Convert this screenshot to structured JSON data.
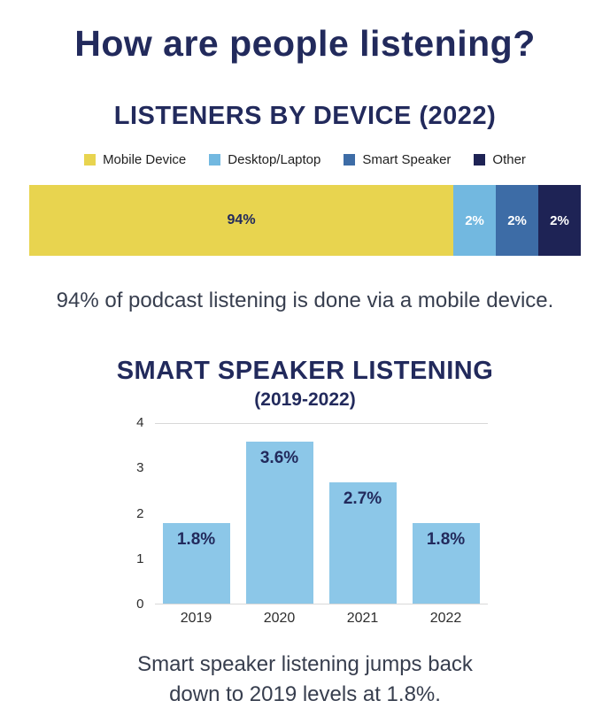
{
  "page": {
    "title": "How are people listening?"
  },
  "colors": {
    "navy": "#222a5c",
    "dark_navy_segment": "#1e2355",
    "yellow": "#e8d44f",
    "light_blue": "#72b8e0",
    "bar_light_blue": "#8cc7e8",
    "medium_blue": "#3d6ca6",
    "caption_text": "#373e4e"
  },
  "device_section": {
    "title": "LISTENERS BY DEVICE (2022)",
    "caption": "94% of podcast listening is done via a mobile device."
  },
  "speaker_section": {
    "title": "SMART SPEAKER LISTENING",
    "subtitle": "(2019-2022)",
    "caption_line1": "Smart speaker listening jumps back",
    "caption_line2": "down to 2019 levels at 1.8%."
  },
  "chart_data": [
    {
      "type": "bar",
      "variant": "horizontal-stacked",
      "title": "LISTENERS BY DEVICE (2022)",
      "legend_position": "top",
      "segments": [
        {
          "label": "Mobile Device",
          "value": 94,
          "display_label": "94%",
          "color": "#e8d44f",
          "text_color": "#222a5c",
          "display_width": 76.9
        },
        {
          "label": "Desktop/Laptop",
          "value": 2,
          "display_label": "2%",
          "color": "#72b8e0",
          "text_color": "#ffffff",
          "display_width": 7.7
        },
        {
          "label": "Smart Speaker",
          "value": 2,
          "display_label": "2%",
          "color": "#3d6ca6",
          "text_color": "#ffffff",
          "display_width": 7.7
        },
        {
          "label": "Other",
          "value": 2,
          "display_label": "2%",
          "color": "#1e2355",
          "text_color": "#ffffff",
          "display_width": 7.7
        }
      ]
    },
    {
      "type": "bar",
      "title": "SMART SPEAKER LISTENING (2019-2022)",
      "categories": [
        "2019",
        "2020",
        "2021",
        "2022"
      ],
      "values": [
        1.8,
        3.6,
        2.7,
        1.8
      ],
      "value_labels": [
        "1.8%",
        "3.6%",
        "2.7%",
        "1.8%"
      ],
      "bar_color": "#8cc7e8",
      "label_color": "#222a5c",
      "xlabel": "",
      "ylabel": "",
      "ylim": [
        0,
        4
      ],
      "yticks": [
        0,
        1,
        2,
        3,
        4
      ],
      "grid": "top-and-baseline-only",
      "legend_position": "none"
    }
  ]
}
